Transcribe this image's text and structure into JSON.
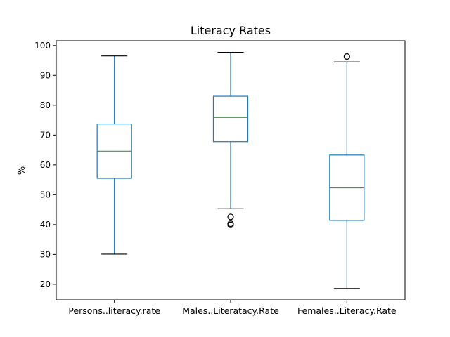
{
  "chart_data": {
    "type": "box",
    "title": "Literacy Rates",
    "xlabel": "",
    "ylabel": "%",
    "ylim": [
      14.8,
      101.6
    ],
    "yticks": [
      20,
      30,
      40,
      50,
      60,
      70,
      80,
      90,
      100
    ],
    "categories": [
      "Persons..literacy.rate",
      "Males..Literatacy.Rate",
      "Females..Literacy.Rate"
    ],
    "boxes": [
      {
        "whisker_low": 30.1,
        "q1": 55.5,
        "median": 64.6,
        "q3": 73.7,
        "whisker_high": 96.5,
        "outliers": []
      },
      {
        "whisker_low": 45.3,
        "q1": 67.8,
        "median": 75.9,
        "q3": 83.0,
        "whisker_high": 97.7,
        "outliers": [
          42.6,
          40.3,
          39.9
        ]
      },
      {
        "whisker_low": 18.6,
        "q1": 41.4,
        "median": 52.3,
        "q3": 63.3,
        "whisker_high": 94.5,
        "outliers": [
          96.3
        ]
      }
    ],
    "grid": false,
    "colors": {
      "box": "#1f77b4",
      "median": "#2ca02c",
      "whisker_cap": "#000000",
      "outlier": "#000000",
      "frame": "#000000"
    }
  }
}
